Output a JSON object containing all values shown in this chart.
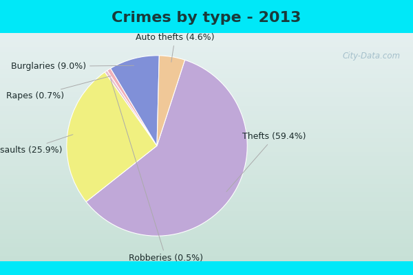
{
  "title": "Crimes by type - 2013",
  "labels": [
    "Thefts",
    "Assaults",
    "Robberies",
    "Rapes",
    "Burglaries",
    "Auto thefts"
  ],
  "values": [
    59.4,
    25.9,
    0.5,
    0.7,
    9.0,
    4.6
  ],
  "colors": [
    "#c0a8d8",
    "#f0f080",
    "#e8c0d0",
    "#f0b0b8",
    "#8090d8",
    "#f0c898"
  ],
  "background_top": "#00e8f8",
  "background_main_top": "#d0e8e0",
  "background_main_bottom": "#e8f4ee",
  "title_fontsize": 16,
  "label_fontsize": 9,
  "watermark": "City-Data.com",
  "startangle": 72
}
